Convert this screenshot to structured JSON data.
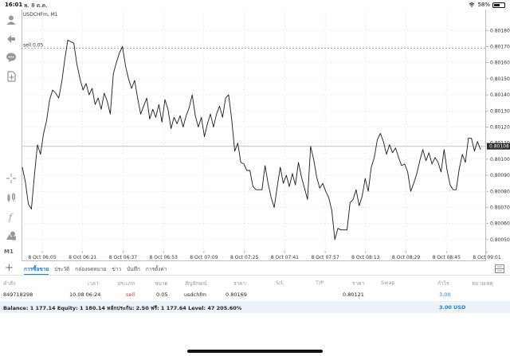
{
  "status_bar": {
    "time": "16:01",
    "date": "พ. 8 ต.ค.",
    "battery": "58%",
    "battery_level": 0.58
  },
  "chart": {
    "symbol_title": "USDCHFm, M1",
    "sell_line_label": "sell 0.05",
    "current_price": "0.80108",
    "timeframe_label": "M1"
  },
  "chart_data": {
    "type": "line",
    "price_ticks": [
      "0.80180",
      "0.80170",
      "0.80160",
      "0.80150",
      "0.80140",
      "0.80130",
      "0.80120",
      "0.80110",
      "0.80100",
      "0.80090",
      "0.80080",
      "0.80070",
      "0.80060",
      "0.80050"
    ],
    "time_ticks": [
      "8 Oct 06:05",
      "8 Oct 06:21",
      "8 Oct 06:37",
      "8 Oct 06:53",
      "8 Oct 07:09",
      "8 Oct 07:25",
      "8 Oct 07:41",
      "8 Oct 07:57",
      "8 Oct 08:13",
      "8 Oct 08:29",
      "8 Oct 08:45",
      "8 Oct 09:01"
    ],
    "ylim": [
      0.80043,
      0.80193
    ],
    "sell_level": 0.80169,
    "current_level": 0.80108,
    "values": [
      0.80095,
      0.80086,
      0.80072,
      0.80069,
      0.8009,
      0.80109,
      0.80103,
      0.80116,
      0.80124,
      0.80137,
      0.80143,
      0.80141,
      0.80138,
      0.80148,
      0.80162,
      0.80174,
      0.80173,
      0.80172,
      0.80159,
      0.8015,
      0.80143,
      0.80147,
      0.8014,
      0.80144,
      0.80134,
      0.80138,
      0.80131,
      0.80141,
      0.80136,
      0.80128,
      0.80153,
      0.8016,
      0.80166,
      0.8017,
      0.80158,
      0.8015,
      0.80144,
      0.80149,
      0.80138,
      0.80128,
      0.80133,
      0.80138,
      0.80125,
      0.80131,
      0.80126,
      0.80134,
      0.80123,
      0.80137,
      0.80131,
      0.80119,
      0.80126,
      0.80122,
      0.80127,
      0.8012,
      0.80127,
      0.80132,
      0.8014,
      0.80127,
      0.8012,
      0.80126,
      0.80114,
      0.80122,
      0.80128,
      0.8012,
      0.80128,
      0.80133,
      0.80126,
      0.80138,
      0.8014,
      0.80125,
      0.80105,
      0.8011,
      0.80098,
      0.80097,
      0.80093,
      0.80093,
      0.80083,
      0.80081,
      0.80081,
      0.80081,
      0.80096,
      0.80085,
      0.80076,
      0.8007,
      0.80083,
      0.80095,
      0.80085,
      0.8009,
      0.80083,
      0.80091,
      0.80084,
      0.80098,
      0.80089,
      0.80082,
      0.80075,
      0.80108,
      0.801,
      0.80089,
      0.80082,
      0.80085,
      0.8008,
      0.80076,
      0.80068,
      0.8005,
      0.80057,
      0.80056,
      0.80056,
      0.80056,
      0.80073,
      0.80075,
      0.80081,
      0.80071,
      0.80077,
      0.80088,
      0.8008,
      0.80095,
      0.80101,
      0.80112,
      0.80116,
      0.80111,
      0.80103,
      0.80109,
      0.80104,
      0.80107,
      0.80101,
      0.80096,
      0.80097,
      0.80092,
      0.8008,
      0.80085,
      0.80091,
      0.80099,
      0.80106,
      0.80099,
      0.80104,
      0.80097,
      0.80101,
      0.80098,
      0.80092,
      0.80106,
      0.80093,
      0.80084,
      0.80081,
      0.80081,
      0.80094,
      0.80103,
      0.80098,
      0.80113,
      0.80113,
      0.80105,
      0.80111,
      0.80106
    ]
  },
  "tabs": [
    "การซื้อขาย",
    "ประวัติ",
    "กล่องจดหมาย",
    "ข่าว",
    "บันทึก",
    "การตั้งค่า"
  ],
  "table": {
    "headers": [
      "คำสั่ง",
      "เวลา",
      "ประเภท",
      "ขนาด",
      "สัญลักษณ์",
      "ราคา",
      "S/L",
      "T/P",
      "ราคา",
      "Swap",
      "กำไร",
      "หมายเหตุ"
    ],
    "row": {
      "order": "849718298",
      "time": "10.08 06:24",
      "type": "sell",
      "volume": "0.05",
      "symbol": "usdchfm",
      "open_price": "0.80169",
      "current_price": "0.80121",
      "profit": "3.00"
    }
  },
  "balance_bar": {
    "text": "Balance: 1 177.14 Equity: 1 180.14 หลักประกัน: 2.50 ฟรี: 1 177.64 Level: 47 205.60%",
    "total": "3.00",
    "currency": "USD"
  },
  "colors": {
    "accent": "#1a7fd6",
    "sell": "#d23232",
    "line": "#1a1a1a",
    "grid": "#d8d8d8"
  }
}
